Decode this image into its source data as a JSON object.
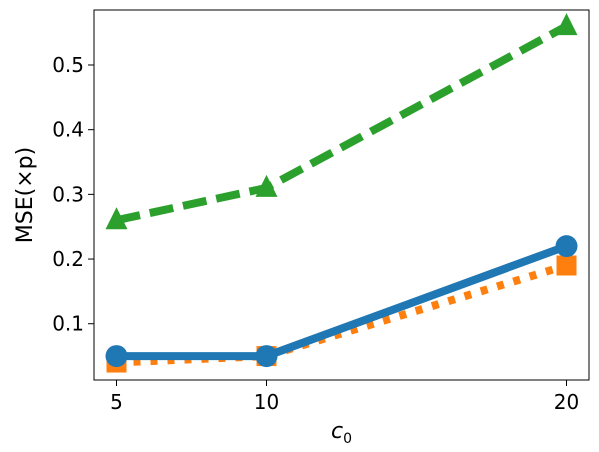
{
  "chart_data": {
    "type": "line",
    "xlabel": "c₀",
    "ylabel": "MSE(×p)",
    "x": [
      5,
      10,
      20
    ],
    "xticks": [
      "5",
      "10",
      "20"
    ],
    "yticks": [
      0.1,
      0.2,
      0.3,
      0.4,
      0.5
    ],
    "ytick_labels": [
      "0.1",
      "0.2",
      "0.3",
      "0.4",
      "0.5"
    ],
    "xlim": [
      4.25,
      20.75
    ],
    "ylim": [
      0.013,
      0.585
    ],
    "grid": false,
    "series": [
      {
        "values": [
          0.05,
          0.05,
          0.22
        ],
        "color": "#1f77b4",
        "linestyle": "solid",
        "marker": "circle"
      },
      {
        "values": [
          0.04,
          0.05,
          0.19
        ],
        "color": "#ff7f0e",
        "linestyle": "dotted",
        "marker": "square"
      },
      {
        "values": [
          0.26,
          0.31,
          0.56
        ],
        "color": "#2ca02c",
        "linestyle": "dashed",
        "marker": "triangle"
      }
    ]
  }
}
